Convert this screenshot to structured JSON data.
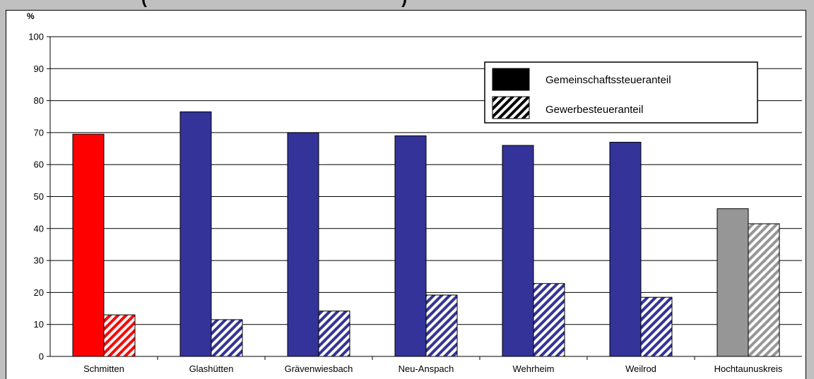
{
  "header": {
    "clipped_title": "(                                                      )"
  },
  "chart_data": {
    "type": "bar",
    "title": "",
    "ylabel": "%",
    "xlabel": "",
    "ylim": [
      0,
      100
    ],
    "yticks": [
      0,
      10,
      20,
      30,
      40,
      50,
      60,
      70,
      80,
      90,
      100
    ],
    "grid": true,
    "legend_position": "top-right",
    "categories": [
      "Schmitten",
      "Glashütten",
      "Grävenwiesbach",
      "Neu-Anspach",
      "Wehrheim",
      "Weilrod",
      "Hochtaunuskreis"
    ],
    "series": [
      {
        "name": "Gemeinschaftssteueranteil",
        "values": [
          69.5,
          76.5,
          70,
          69,
          66,
          67,
          46.2
        ],
        "pattern": "solid"
      },
      {
        "name": "Gewerbesteueranteil",
        "values": [
          13,
          11.5,
          14.2,
          19.2,
          22.8,
          18.5,
          41.5
        ],
        "pattern": "hatched"
      }
    ],
    "category_colors": [
      "#ff0000",
      "#333399",
      "#333399",
      "#333399",
      "#333399",
      "#333399",
      "#969696"
    ],
    "legend_color": "#000000"
  }
}
